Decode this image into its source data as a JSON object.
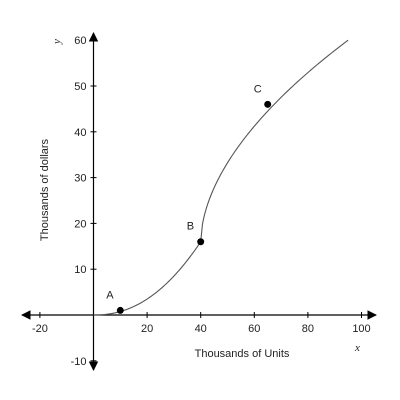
{
  "chart_data": {
    "type": "line",
    "title": "",
    "xlabel": "Thousands of Units",
    "ylabel": "Thousands of dollars",
    "x_var": "x",
    "y_var": "y",
    "xlim": [
      -20,
      100
    ],
    "ylim": [
      -10,
      60
    ],
    "x_ticks": [
      -20,
      20,
      40,
      60,
      80,
      100
    ],
    "y_ticks": [
      -10,
      10,
      20,
      30,
      40,
      50,
      60
    ],
    "grid": false,
    "curve": {
      "segments": [
        {
          "form": "power",
          "x_start": 0,
          "x_end": 40,
          "y_start": 0,
          "y_end": 16,
          "exponent": 2.2
        },
        {
          "form": "power",
          "x_start": 40,
          "x_end": 95,
          "y_start": 16,
          "y_end": 60,
          "exponent": 0.55
        }
      ]
    },
    "points": [
      {
        "label": "A",
        "x": 10,
        "y": 1
      },
      {
        "label": "B",
        "x": 40,
        "y": 16
      },
      {
        "label": "C",
        "x": 65,
        "y": 46
      }
    ]
  }
}
